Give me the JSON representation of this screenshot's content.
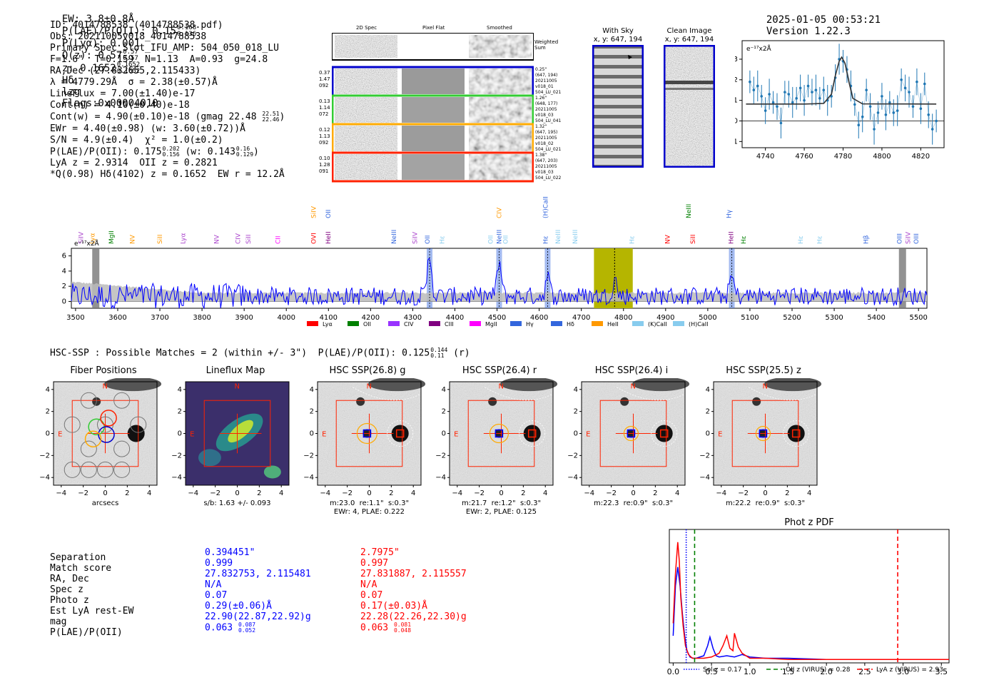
{
  "header": {
    "ew": "EW: 3.8±0.8Å",
    "plae": "P(LAE)/P(OII): 0.15",
    "plae_hi": "0.168",
    "plae_lo": "0.136",
    "plya": "P(Lyα): 0.001",
    "qz": "Q(z): 0.57",
    "qz_hi": "0.57",
    "qz_lo": "0.57",
    "z": "z: 0.1652",
    "z_hi": "0.1652",
    "z_lo": "0.1652",
    "line": "Hδ",
    "lzg": "lzg",
    "flags": "Flags:0x00004010",
    "timestamp": "2025-01-05 00:53:21",
    "version": "Version 1.22.3"
  },
  "info": {
    "lines": [
      "ID: 4014788538 (4014788538.pdf)",
      "Obs: 20211005v018_4014788538",
      "Primary Spec_Slot_IFU_AMP: 504_050_018_LU",
      "F=1.6\"  T=0.159  N=1.13  A=0.93  g=24.8",
      "RA,Dec (27.832655,2.115433)",
      "λ = 4779.29Å  σ = 2.38(±0.57)Å",
      "LineFlux = 7.00(±1.40)e-17",
      "Cont(n) = 4.10(±0.40)e-18",
      "Cont(w) = 4.90(±0.10)e-18 (gmag 22.48",
      "EWr = 4.40(±0.98) (w: 3.60(±0.72))Å",
      "S/N = 4.9(±0.4)  χ² = 1.0(±0.2)",
      "P(LAE)/P(OII): 0.175",
      "LyA z = 2.9314  OII z = 0.2821",
      "*Q(0.98) Hδ(4102) z = 0.1652  EW r = 12.2Å"
    ],
    "gmag_hi": "22.51",
    "gmag_lo": "22.46",
    "plae_hi": "0.202",
    "plae_lo": "0.156",
    "plae_w": "(w: 0.143",
    "plae_w_hi": "0.16",
    "plae_w_lo": "0.129",
    "plae_w_close": ")"
  },
  "stamps": {
    "col_2d": "2D Spec",
    "col_flat": "Pixel Flat",
    "col_smooth": "Smoothed",
    "weighted": "Weighted",
    "sum": "Sum",
    "rows": [
      {
        "left": [
          "0.37",
          "1.47",
          "092"
        ],
        "right": [
          "0.25\"",
          "(647, 194)",
          "20211005",
          "v018_01",
          "504_LU_021"
        ],
        "color": "#0000cc"
      },
      {
        "left": [
          "0.13",
          "1.14",
          "072"
        ],
        "right": [
          "1.26\"",
          "(648, 177)",
          "20211005",
          "v018_03",
          "504_LU_041"
        ],
        "color": "#33cc33"
      },
      {
        "left": [
          "0.12",
          "1.13",
          "092"
        ],
        "right": [
          "1.32\"",
          "(647, 195)",
          "20211005",
          "v018_02",
          "504_LU_021"
        ],
        "color": "#ffaa00"
      },
      {
        "left": [
          "0.10",
          "1.28",
          "091"
        ],
        "right": [
          "1.38\"",
          "(647, 203)",
          "20211005",
          "v018_03",
          "504_LU_022"
        ],
        "color": "#ff2200"
      }
    ],
    "with_sky": "With Sky",
    "with_sky_xy": "x, y: 647, 194",
    "clean": "Clean Image",
    "clean_xy": "x, y: 647, 194"
  },
  "zoom_chart": {
    "unit_label": "e⁻¹⁷x2Å"
  },
  "spectrum_labels": {
    "unit_label": "e⁻¹⁷x2Å",
    "legend": [
      {
        "name": "Lyα",
        "color": "#ff0000"
      },
      {
        "name": "OII",
        "color": "#008000"
      },
      {
        "name": "CIV",
        "color": "#9933ff"
      },
      {
        "name": "CIII",
        "color": "#800080"
      },
      {
        "name": "MgII",
        "color": "#ff00ff"
      },
      {
        "name": "Hγ",
        "color": "#3366dd"
      },
      {
        "name": "Hδ",
        "color": "#3366dd"
      },
      {
        "name": "HeII",
        "color": "#ff9900"
      },
      {
        "name": "(K)CaII",
        "color": "#88ccee"
      },
      {
        "name": "(H)CaII",
        "color": "#88ccee"
      }
    ],
    "line_marks": [
      {
        "name": "SiIV",
        "wave": 3518,
        "color": "#aa44cc",
        "row": 1
      },
      {
        "name": "Lyα",
        "wave": 3545,
        "color": "#ff9900",
        "row": 1
      },
      {
        "name": "MgII",
        "wave": 3590,
        "color": "#008000",
        "row": 1
      },
      {
        "name": "NV",
        "wave": 3640,
        "color": "#ff9900",
        "row": 1
      },
      {
        "name": "SiII",
        "wave": 3705,
        "color": "#ff9900",
        "row": 1
      },
      {
        "name": "Lyα",
        "wave": 3760,
        "color": "#aa44cc",
        "row": 1
      },
      {
        "name": "NV",
        "wave": 3840,
        "color": "#aa44cc",
        "row": 1
      },
      {
        "name": "CIV",
        "wave": 3890,
        "color": "#aa44cc",
        "row": 1
      },
      {
        "name": "SiII",
        "wave": 3915,
        "color": "#aa44cc",
        "row": 1
      },
      {
        "name": "CII",
        "wave": 3985,
        "color": "#ff00ff",
        "row": 1
      },
      {
        "name": "SiIV",
        "wave": 4070,
        "color": "#ff9900",
        "row": 0
      },
      {
        "name": "OVI",
        "wave": 4070,
        "color": "#ff0000",
        "row": 1
      },
      {
        "name": "OII",
        "wave": 4105,
        "color": "#3366dd",
        "row": 0
      },
      {
        "name": "HeII",
        "wave": 4105,
        "color": "#800080",
        "row": 1
      },
      {
        "name": "NeIII",
        "wave": 4260,
        "color": "#3366dd",
        "row": 1
      },
      {
        "name": "SiIV",
        "wave": 4310,
        "color": "#aa44cc",
        "row": 1
      },
      {
        "name": "OII",
        "wave": 4340,
        "color": "#3366dd",
        "row": 1
      },
      {
        "name": "Hε",
        "wave": 4375,
        "color": "#88ccee",
        "row": 1
      },
      {
        "name": "CIV",
        "wave": 4510,
        "color": "#ff9900",
        "row": 0
      },
      {
        "name": "OII",
        "wave": 4490,
        "color": "#88ccee",
        "row": 1
      },
      {
        "name": "NeIII",
        "wave": 4510,
        "color": "#3366dd",
        "row": 1
      },
      {
        "name": "OII",
        "wave": 4525,
        "color": "#88ccee",
        "row": 1
      },
      {
        "name": "(H)CaII",
        "wave": 4620,
        "color": "#3366dd",
        "row": 0
      },
      {
        "name": "Hε",
        "wave": 4620,
        "color": "#3366dd",
        "row": 1
      },
      {
        "name": "NeIII",
        "wave": 4650,
        "color": "#88ccee",
        "row": 1
      },
      {
        "name": "NeIII",
        "wave": 4690,
        "color": "#88ccee",
        "row": 1
      },
      {
        "name": "Hε",
        "wave": 4825,
        "color": "#88ccee",
        "row": 1
      },
      {
        "name": "NV",
        "wave": 4910,
        "color": "#ff0000",
        "row": 1
      },
      {
        "name": "NeIII",
        "wave": 4960,
        "color": "#008000",
        "row": 0
      },
      {
        "name": "SiII",
        "wave": 4970,
        "color": "#ff0000",
        "row": 1
      },
      {
        "name": "Hγ",
        "wave": 5055,
        "color": "#3366dd",
        "row": 0
      },
      {
        "name": "HeII",
        "wave": 5060,
        "color": "#800080",
        "row": 1
      },
      {
        "name": "Hε",
        "wave": 5090,
        "color": "#008000",
        "row": 1
      },
      {
        "name": "Hε",
        "wave": 5225,
        "color": "#88ccee",
        "row": 1
      },
      {
        "name": "Hε",
        "wave": 5270,
        "color": "#88ccee",
        "row": 1
      },
      {
        "name": "Hβ",
        "wave": 5380,
        "color": "#3366dd",
        "row": 1
      },
      {
        "name": "OIII",
        "wave": 5460,
        "color": "#3366dd",
        "row": 1
      },
      {
        "name": "SiIV",
        "wave": 5480,
        "color": "#aa44cc",
        "row": 1
      },
      {
        "name": "OIII",
        "wave": 5500,
        "color": "#3366dd",
        "row": 1
      }
    ]
  },
  "hsc": {
    "summary": "HSC-SSP : Possible Matches = 2 (within +/- 3\")  P(LAE)/P(OII): 0.125",
    "summary_hi": "0.144",
    "summary_lo": "0.11",
    "summary_tail": "(r)",
    "panels": [
      {
        "title": "Fiber Positions",
        "caption1": "arcsecs",
        "caption2": ""
      },
      {
        "title": "Lineflux Map",
        "caption1": "s/b: 1.63 +/- 0.093",
        "caption2": ""
      },
      {
        "title": "HSC SSP(26.8) g",
        "caption1": "m:23.0  re:1.1\"  s:0.3\"",
        "caption2": "EWr: 4, PLAE: 0.222"
      },
      {
        "title": "HSC SSP(26.4) r",
        "caption1": "m:21.7  re:1.2\"  s:0.3\"",
        "caption2": "EWr: 2, PLAE: 0.125"
      },
      {
        "title": "HSC SSP(26.4) i",
        "caption1": "m:22.3  re:0.9\"  s:0.3\"",
        "caption2": ""
      },
      {
        "title": "HSC SSP(25.5) z",
        "caption1": "m:22.2  re:0.9\"  s:0.3\"",
        "caption2": ""
      }
    ],
    "axis_ticks_y": [
      "4",
      "2",
      "0",
      "−2",
      "−4"
    ],
    "axis_ticks_x": [
      "−4",
      "−2",
      "0",
      "2",
      "4"
    ],
    "compass_n": "N",
    "compass_e": "E"
  },
  "matches": {
    "labels": [
      "Separation",
      "Match score",
      "RA, Dec",
      "Spec z",
      "Photo z",
      "Est LyA rest-EW",
      "mag",
      "P(LAE)/P(OII)"
    ],
    "blue": [
      "0.394451\"",
      "0.999",
      "27.832753, 2.115481",
      "N/A",
      "0.07",
      "0.29(±0.06)Å",
      "22.90(22.87,22.92)g",
      "0.063"
    ],
    "blue_hi": "0.087",
    "blue_lo": "0.052",
    "red": [
      "2.7975\"",
      "0.997",
      "27.831887, 2.115557",
      "N/A",
      "0.07",
      "0.17(±0.03)Å",
      "22.28(22.26,22.30)g",
      "0.063"
    ],
    "red_hi": "0.081",
    "red_lo": "0.048"
  },
  "chart_data": [
    {
      "type": "line",
      "title": "",
      "ylabel": "e⁻¹⁷x2Å",
      "xlim": [
        4728,
        4832
      ],
      "ylim": [
        -1.3,
        3.9
      ],
      "x_ticks": [
        4740,
        4760,
        4780,
        4800,
        4820
      ],
      "y_ticks": [
        -1,
        0,
        1,
        2,
        3
      ],
      "series": [
        {
          "name": "data",
          "color": "#1f77b4",
          "x": [
            4732,
            4734,
            4736,
            4738,
            4740,
            4742,
            4744,
            4746,
            4748,
            4750,
            4752,
            4754,
            4756,
            4758,
            4760,
            4762,
            4764,
            4766,
            4768,
            4770,
            4772,
            4774,
            4776,
            4778,
            4780,
            4782,
            4784,
            4786,
            4788,
            4790,
            4792,
            4794,
            4796,
            4798,
            4800,
            4802,
            4804,
            4806,
            4808,
            4810,
            4812,
            4814,
            4816,
            4818,
            4820,
            4822,
            4824,
            4826,
            4828
          ],
          "y": [
            1.9,
            1.5,
            1.7,
            1.2,
            0.5,
            1.3,
            0.9,
            0.7,
            -0.1,
            1.4,
            1.3,
            0.9,
            1.1,
            1.6,
            1.0,
            1.7,
            1.4,
            1.5,
            1.1,
            1.5,
            1.0,
            1.2,
            2.1,
            3.0,
            2.9,
            2.5,
            1.7,
            0.8,
            -0.2,
            0.2,
            1.5,
            0.7,
            -0.4,
            0.4,
            1.2,
            0.3,
            0.9,
            0.4,
            0.5,
            2.0,
            1.6,
            1.4,
            0.7,
            1.9,
            0.6,
            1.8,
            0.3,
            -0.4,
            0.0
          ]
        },
        {
          "name": "fit",
          "color": "#333333",
          "x": [
            4730,
            4760,
            4770,
            4774,
            4776,
            4778,
            4779.3,
            4781,
            4783,
            4785,
            4790,
            4828
          ],
          "y": [
            0.82,
            0.82,
            0.85,
            1.3,
            2.2,
            2.9,
            3.1,
            2.8,
            1.9,
            1.1,
            0.83,
            0.82
          ]
        }
      ]
    },
    {
      "type": "line",
      "title": "",
      "ylabel": "e⁻¹⁷x2Å",
      "xlabel": "",
      "xlim": [
        3490,
        5520
      ],
      "ylim": [
        -0.9,
        7.0
      ],
      "x_ticks": [
        3500,
        3600,
        3700,
        3800,
        3900,
        4000,
        4100,
        4200,
        4300,
        4400,
        4500,
        4600,
        4700,
        4800,
        4900,
        5000,
        5100,
        5200,
        5300,
        5400,
        5500
      ],
      "y_ticks": [
        0,
        2,
        4,
        6
      ],
      "highlight_band": [
        4730,
        4822
      ],
      "marker_line": 4779,
      "line_bands": [
        4340,
        4505,
        4620,
        5057
      ],
      "hatch_bands": [
        3548,
        5462
      ],
      "series": [
        {
          "name": "flux",
          "color": "#0000ff"
        },
        {
          "name": "error",
          "color": "#bbbbbb"
        }
      ]
    },
    {
      "type": "line",
      "title": "Phot z PDF",
      "xlim": [
        -0.05,
        3.6
      ],
      "x_ticks": [
        0.0,
        0.5,
        1.0,
        1.5,
        2.0,
        2.5,
        3.0,
        3.5
      ],
      "vlines": [
        {
          "name": "Sol z = 0.17",
          "x": 0.17,
          "color": "#0000ff",
          "style": "dotted"
        },
        {
          "name": "OII z (VIRUS) = 0.28",
          "x": 0.28,
          "color": "#008000",
          "style": "dashed"
        },
        {
          "name": "LyA z (VIRUS) = 2.93",
          "x": 2.93,
          "color": "#ff0000",
          "style": "dashed"
        }
      ],
      "series": [
        {
          "name": "blue",
          "color": "#0000ff",
          "x": [
            0,
            0.03,
            0.06,
            0.09,
            0.12,
            0.15,
            0.18,
            0.22,
            0.26,
            0.3,
            0.35,
            0.4,
            0.45,
            0.48,
            0.52,
            0.56,
            0.6,
            0.7,
            0.8,
            0.9,
            1.0,
            1.2,
            1.5,
            2,
            3.6
          ],
          "y": [
            0.2,
            0.6,
            0.75,
            0.6,
            0.38,
            0.2,
            0.08,
            0.03,
            0.02,
            0.02,
            0.03,
            0.04,
            0.12,
            0.19,
            0.1,
            0.04,
            0.03,
            0.04,
            0.03,
            0.05,
            0.03,
            0.02,
            0.02,
            0.01,
            0.01
          ]
        },
        {
          "name": "red",
          "color": "#ff0000",
          "x": [
            0,
            0.03,
            0.06,
            0.08,
            0.1,
            0.13,
            0.16,
            0.2,
            0.25,
            0.3,
            0.4,
            0.5,
            0.6,
            0.65,
            0.7,
            0.74,
            0.78,
            0.8,
            0.85,
            0.9,
            0.95,
            1.0,
            1.2,
            1.5,
            2,
            3.6
          ],
          "y": [
            0.3,
            0.7,
            0.95,
            0.8,
            0.5,
            0.28,
            0.12,
            0.05,
            0.02,
            0.02,
            0.02,
            0.03,
            0.06,
            0.12,
            0.2,
            0.1,
            0.08,
            0.22,
            0.11,
            0.06,
            0.04,
            0.02,
            0.02,
            0.01,
            0.01,
            0.01
          ]
        }
      ]
    }
  ]
}
